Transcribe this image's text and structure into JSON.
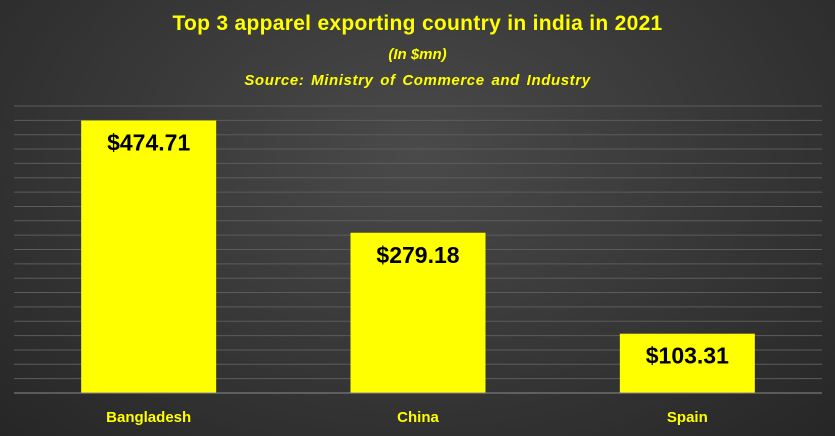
{
  "chart_data": {
    "type": "bar",
    "title": "Top 3 apparel exporting country in india in 2021",
    "subtitle": "(In $mn)",
    "source": "Source: Ministry of Commerce and Industry",
    "categories": [
      "Bangladesh",
      "China",
      "Spain"
    ],
    "values": [
      474.71,
      279.18,
      103.31
    ],
    "data_labels": [
      "$474.71",
      "$279.18",
      "$103.31"
    ],
    "xlabel": "",
    "ylabel": "",
    "ylim": [
      0,
      500
    ],
    "grid": true,
    "legend": "none",
    "bar_color": "#ffff00",
    "label_color": "#000000",
    "category_label_color": "#ffff00",
    "background_color": "#3a3a3a",
    "grid_color": "#5c5c5c"
  }
}
